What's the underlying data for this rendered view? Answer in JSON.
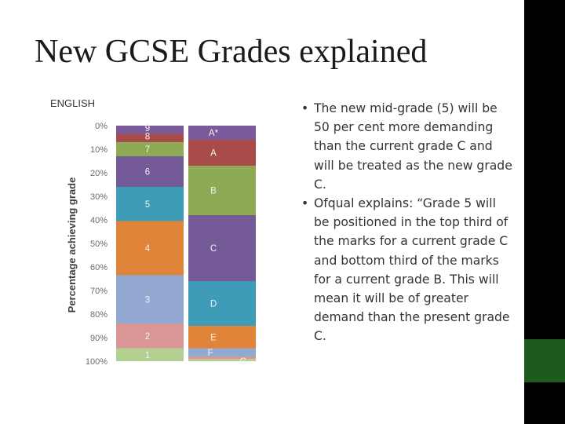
{
  "slide": {
    "title": "New GCSE Grades explained",
    "bullets": [
      "The new mid-grade (5) will be 50 per cent more demanding than the current grade C and will be treated as the new grade C.",
      "Ofqual explains: “Grade 5 will be positioned in the top third of the marks for a current grade C and bottom third of the marks for a current grade B. This will mean it will be of greater demand than the present grade C."
    ],
    "bullet_glyph": "•"
  },
  "colors": {
    "sidebar": "#000000",
    "sidebar_accent": "#1e5a1e"
  },
  "chart_data": {
    "type": "bar",
    "title": "ENGLISH",
    "ylabel": "Percentage achieving grade",
    "ylim": [
      0,
      100
    ],
    "yticks": [
      "0%",
      "10%",
      "20%",
      "30%",
      "40%",
      "50%",
      "60%",
      "70%",
      "80%",
      "90%",
      "100%"
    ],
    "grid": false,
    "series": [
      {
        "segments": [
          {
            "label": "9",
            "from": 0,
            "to": 3.5,
            "color": "#7b5a9b"
          },
          {
            "label": "8",
            "from": 3.5,
            "to": 7,
            "color": "#a94b4b"
          },
          {
            "label": "7",
            "from": 7,
            "to": 13,
            "color": "#8faa55"
          },
          {
            "label": "6",
            "from": 13,
            "to": 26,
            "color": "#745a96"
          },
          {
            "label": "5",
            "from": 26,
            "to": 40.5,
            "color": "#3f9cb8"
          },
          {
            "label": "4",
            "from": 40.5,
            "to": 63.5,
            "color": "#e08439"
          },
          {
            "label": "3",
            "from": 63.5,
            "to": 84,
            "color": "#93a9d2"
          },
          {
            "label": "2",
            "from": 84,
            "to": 94.5,
            "color": "#d99695"
          },
          {
            "label": "1",
            "from": 94.5,
            "to": 100,
            "color": "#b3d093"
          }
        ]
      },
      {
        "segments": [
          {
            "label": "A*",
            "from": 0,
            "to": 6,
            "color": "#7b5a9b"
          },
          {
            "label": "A",
            "from": 6,
            "to": 17,
            "color": "#a94b4b"
          },
          {
            "label": "B",
            "from": 17,
            "to": 38,
            "color": "#8faa55"
          },
          {
            "label": "C",
            "from": 38,
            "to": 66,
            "color": "#745a96"
          },
          {
            "label": "D",
            "from": 66,
            "to": 85,
            "color": "#3f9cb8"
          },
          {
            "label": "E",
            "from": 85,
            "to": 94.5,
            "color": "#e08439"
          },
          {
            "label": "F",
            "from": 94.5,
            "to": 98,
            "color": "#93a9d2"
          },
          {
            "label": "G",
            "from": 98,
            "to": 99,
            "color": "#d99695"
          },
          {
            "label": "",
            "from": 99,
            "to": 100,
            "color": "#b3d093"
          }
        ]
      }
    ]
  }
}
